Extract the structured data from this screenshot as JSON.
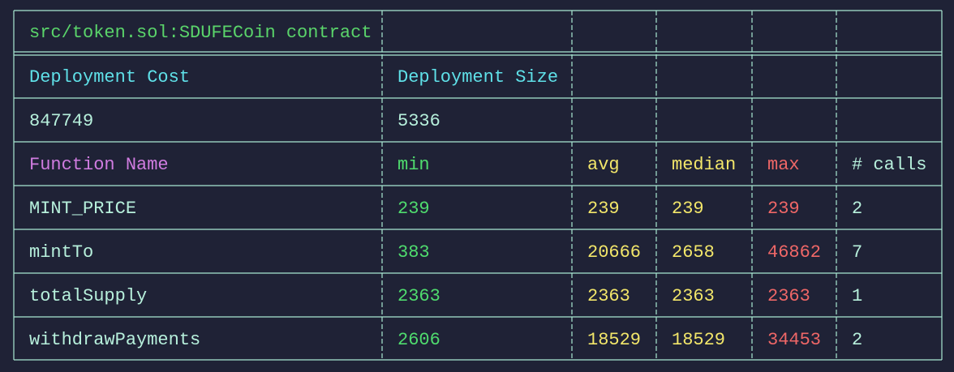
{
  "title": "src/token.sol:SDUFECoin contract",
  "deployment": {
    "headers": [
      "Deployment Cost",
      "Deployment Size"
    ],
    "values": [
      847749,
      5336
    ]
  },
  "functions": {
    "headers": [
      "Function Name",
      "min",
      "avg",
      "median",
      "max",
      "# calls"
    ],
    "rows": [
      [
        "MINT_PRICE",
        239,
        239,
        239,
        239,
        2
      ],
      [
        "mintTo",
        383,
        20666,
        2658,
        46862,
        7
      ],
      [
        "totalSupply",
        2363,
        2363,
        2363,
        2363,
        1
      ],
      [
        "withdrawPayments",
        2606,
        18529,
        18529,
        34453,
        2
      ]
    ]
  }
}
